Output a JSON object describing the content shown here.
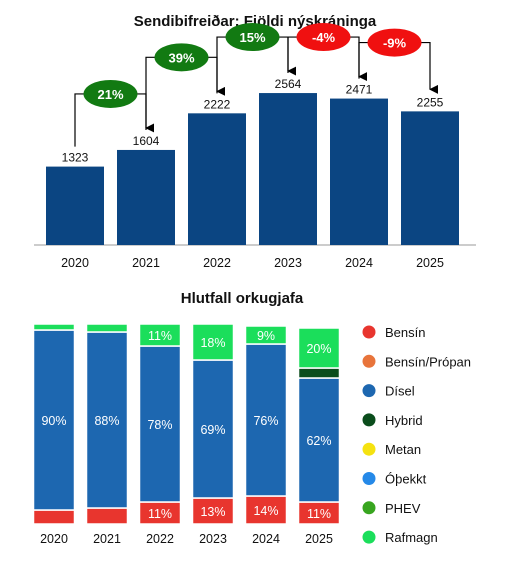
{
  "chart_data": [
    {
      "type": "bar",
      "title": "Sendibifreiðar: Fjöldi nýskráninga",
      "categories": [
        "2020",
        "2021",
        "2022",
        "2023",
        "2024",
        "2025"
      ],
      "values": [
        1323,
        1604,
        2222,
        2564,
        2471,
        2255
      ],
      "value_labels": [
        "1323",
        "1604",
        "2222",
        "2564",
        "2471",
        "2255"
      ],
      "ylim": [
        0,
        2700
      ],
      "grid": false,
      "bar_color": "#0b4582",
      "changes": [
        {
          "from": 0,
          "to": 1,
          "label": "21%",
          "color": "#127a12"
        },
        {
          "from": 1,
          "to": 2,
          "label": "39%",
          "color": "#127a12"
        },
        {
          "from": 2,
          "to": 3,
          "label": "15%",
          "color": "#127a12"
        },
        {
          "from": 3,
          "to": 4,
          "label": "-4%",
          "color": "#f01010"
        },
        {
          "from": 4,
          "to": 5,
          "label": "-9%",
          "color": "#f01010"
        }
      ]
    },
    {
      "type": "bar",
      "stacked": true,
      "title": "Hlutfall orkugjafa",
      "categories": [
        "2020",
        "2021",
        "2022",
        "2023",
        "2024",
        "2025"
      ],
      "ylim": [
        0,
        100
      ],
      "series": [
        {
          "name": "Bensín",
          "color": "#e8352e",
          "values": [
            7,
            8,
            11,
            13,
            14,
            11
          ],
          "labels": [
            "",
            "",
            "11%",
            "13%",
            "14%",
            "11%"
          ]
        },
        {
          "name": "Bensín/Própan",
          "color": "#e8743b",
          "values": [
            0,
            0,
            0,
            0,
            0,
            0
          ],
          "labels": [
            "",
            "",
            "",
            "",
            "",
            ""
          ]
        },
        {
          "name": "Dísel",
          "color": "#1d67b0",
          "values": [
            90,
            88,
            78,
            69,
            76,
            62
          ],
          "labels": [
            "90%",
            "88%",
            "78%",
            "69%",
            "76%",
            "62%"
          ]
        },
        {
          "name": "Hybrid",
          "color": "#0b4d1c",
          "values": [
            0,
            0,
            0,
            0,
            0,
            5
          ],
          "labels": [
            "",
            "",
            "",
            "",
            "",
            ""
          ]
        },
        {
          "name": "Metan",
          "color": "#f5e211",
          "values": [
            0,
            0,
            0,
            0,
            0,
            0
          ],
          "labels": [
            "",
            "",
            "",
            "",
            "",
            ""
          ]
        },
        {
          "name": "Óþekkt",
          "color": "#2589e8",
          "values": [
            0,
            0,
            0,
            0,
            0,
            0
          ],
          "labels": [
            "",
            "",
            "",
            "",
            "",
            ""
          ]
        },
        {
          "name": "PHEV",
          "color": "#38a51f",
          "values": [
            0,
            0,
            0,
            0,
            0,
            0
          ],
          "labels": [
            "",
            "",
            "",
            "",
            "",
            ""
          ]
        },
        {
          "name": "Rafmagn",
          "color": "#1bde5b",
          "values": [
            3,
            4,
            11,
            18,
            9,
            20
          ],
          "labels": [
            "",
            "",
            "11%",
            "18%",
            "9%",
            "20%"
          ]
        }
      ],
      "legend": "right"
    }
  ]
}
